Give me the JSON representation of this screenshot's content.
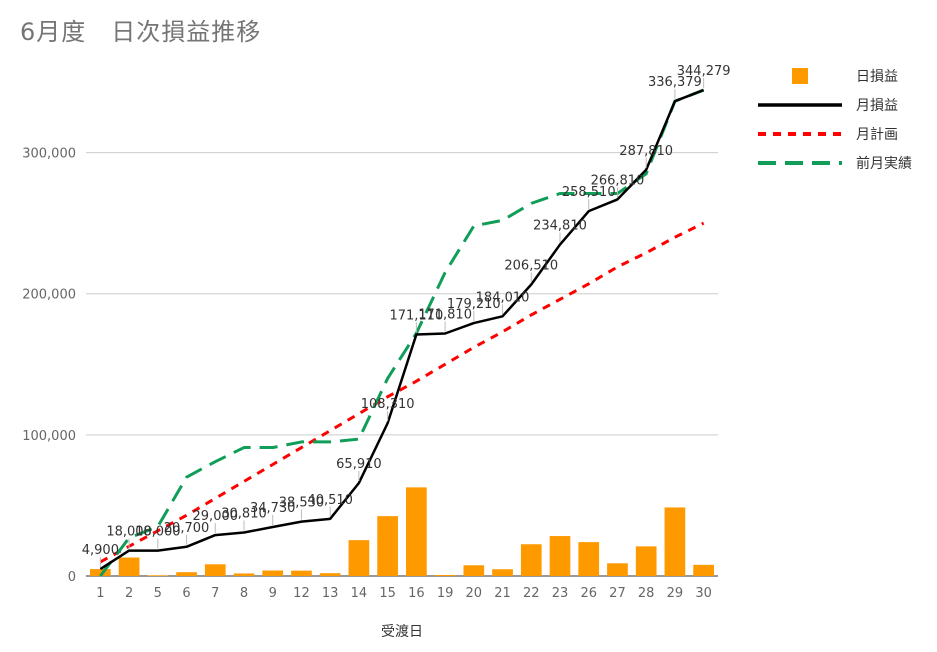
{
  "title": "6月度　日次損益推移",
  "chart_data": {
    "type": "bar+line",
    "xlabel": "受渡日",
    "ylabel": "",
    "ylim": [
      0,
      350000
    ],
    "yticks": [
      0,
      100000,
      200000,
      300000
    ],
    "ytick_labels": [
      "0",
      "100,000",
      "200,000",
      "300,000"
    ],
    "grid": true,
    "legend_position": "right",
    "categories": [
      "1",
      "2",
      "5",
      "6",
      "7",
      "8",
      "9",
      "12",
      "13",
      "14",
      "15",
      "16",
      "19",
      "20",
      "21",
      "22",
      "23",
      "26",
      "27",
      "28",
      "29",
      "30"
    ],
    "series": [
      {
        "name": "日損益",
        "type": "bar",
        "color": "#ff9900",
        "values": [
          4900,
          13100,
          500,
          2700,
          8300,
          1800,
          3900,
          3800,
          2000,
          25400,
          42400,
          62800,
          700,
          7600,
          4800,
          22500,
          28300,
          24000,
          9000,
          21000,
          48569,
          7900
        ]
      },
      {
        "name": "月損益",
        "type": "line",
        "color": "#000000",
        "dash": "solid",
        "values": [
          4900,
          18000,
          18000,
          20700,
          29000,
          30810,
          34730,
          38530,
          40510,
          65910,
          108310,
          171110,
          171810,
          179210,
          184010,
          206510,
          234810,
          258510,
          266810,
          287810,
          336379,
          344279
        ]
      },
      {
        "name": "月計画",
        "type": "line",
        "color": "#ff0000",
        "dash": "short",
        "values": [
          10000,
          21000,
          32000,
          43000,
          55000,
          67000,
          79000,
          91000,
          103000,
          115000,
          127000,
          138000,
          150000,
          162000,
          173000,
          185000,
          196000,
          207000,
          219000,
          229000,
          240000,
          250000
        ]
      },
      {
        "name": "前月実績",
        "type": "line",
        "color": "#0f9d58",
        "dash": "long",
        "values": [
          0,
          27000,
          35000,
          70000,
          81000,
          91000,
          91000,
          95000,
          95000,
          97000,
          140000,
          172000,
          215000,
          248000,
          252000,
          264000,
          271000,
          271000,
          271000,
          285000,
          336379,
          344279
        ]
      }
    ],
    "data_labels": [
      "4,900",
      "18,000",
      "18,000",
      "20,700",
      "29,000",
      "30,810",
      "34,730",
      "38,530",
      "40,510",
      "65,910",
      "108,310",
      "171,110",
      "171,810",
      "179,210",
      "184,010",
      "206,510",
      "234,810",
      "258,510",
      "266,810",
      "287,810",
      "336,379",
      "344,279"
    ]
  }
}
